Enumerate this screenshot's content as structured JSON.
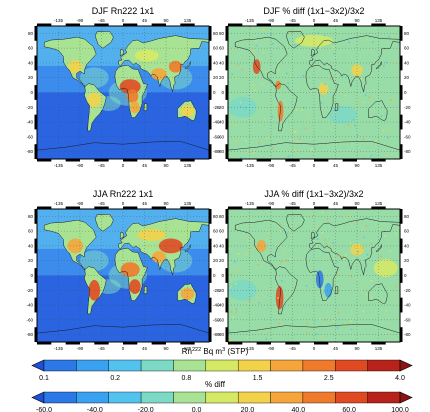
{
  "panels": [
    {
      "title": "DJF Rn222 1x1",
      "kind": "rn",
      "season": "DJF"
    },
    {
      "title": "DJF % diff (1x1−3x2)/3x2",
      "kind": "diff",
      "season": "DJF"
    },
    {
      "title": "JJA Rn222 1x1",
      "kind": "rn",
      "season": "JJA"
    },
    {
      "title": "JJA % diff (1x1−3x2)/3x2",
      "kind": "diff",
      "season": "JJA"
    }
  ],
  "lon_ticks": [
    "-135",
    "-90",
    "-45",
    "0",
    "45",
    "90",
    "135"
  ],
  "lat_ticks": [
    "80",
    "60",
    "40",
    "20",
    "0",
    "-20",
    "-40",
    "-60",
    "-80"
  ],
  "colorbar_rn": {
    "label": "Rn",
    "label_sup": "222",
    "label_rest": " Bq m",
    "label_unit_sup": "3",
    "label_tail": " (STP)",
    "ticks": [
      "0.1",
      "0.2",
      "0.8",
      "1.5",
      "2.5",
      "4.0"
    ],
    "colors": [
      "#1f4fd4",
      "#2b78e6",
      "#3aa0f0",
      "#52c3ef",
      "#7bd9c6",
      "#a8e394",
      "#d6e965",
      "#f3d24b",
      "#f6a53a",
      "#f07a2c",
      "#e04a22",
      "#b8221a",
      "#8a1414"
    ]
  },
  "colorbar_diff": {
    "label": "% diff",
    "ticks": [
      "-60.0",
      "-40.0",
      "-20.0",
      "0.0",
      "20.0",
      "40.0",
      "60.0",
      "100.0"
    ],
    "colors": [
      "#1f4fd4",
      "#2b78e6",
      "#3aa0f0",
      "#52c3ef",
      "#7bd9c6",
      "#a8e394",
      "#d6e965",
      "#f3d24b",
      "#f6a53a",
      "#f07a2c",
      "#e04a22",
      "#b8221a",
      "#8a1414"
    ]
  },
  "chart_data": {
    "type": "heatmap",
    "maps": [
      {
        "title": "DJF Rn222 1x1",
        "field": "Rn222 concentration, 1x1 model, DJF"
      },
      {
        "title": "DJF % diff (1x1−3x2)/3x2",
        "field": "percent difference, DJF"
      },
      {
        "title": "JJA Rn222 1x1",
        "field": "Rn222 concentration, 1x1 model, JJA"
      },
      {
        "title": "JJA % diff (1x1−3x2)/3x2",
        "field": "percent difference, JJA"
      }
    ],
    "x_axis": "longitude",
    "x_ticks": [
      -135,
      -90,
      -45,
      0,
      45,
      90,
      135
    ],
    "xlim": [
      -180,
      180
    ],
    "y_axis": "latitude",
    "y_ticks": [
      80,
      60,
      40,
      20,
      0,
      -20,
      -40,
      -60,
      -80
    ],
    "ylim": [
      -90,
      90
    ],
    "colorbars": [
      {
        "label": "Rn222 Bq m3 (STP)",
        "ticks": [
          0.1,
          0.2,
          0.8,
          1.5,
          2.5,
          4.0
        ],
        "extend": "both"
      },
      {
        "label": "% diff",
        "ticks": [
          -60,
          -40,
          -20,
          0,
          20,
          40,
          60,
          100
        ],
        "extend": "both"
      }
    ],
    "grid": true
  }
}
